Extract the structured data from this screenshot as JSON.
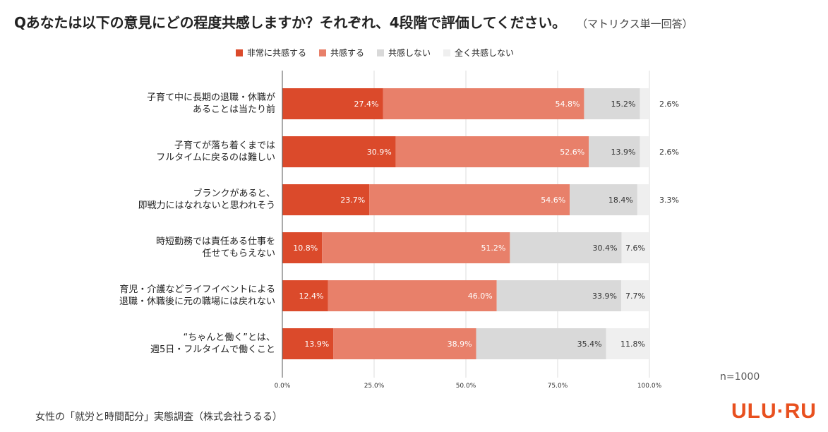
{
  "header": {
    "title": "Qあなたは以下の意見にどの程度共感しますか？それぞれ、4段階で評価してください。",
    "note": "（マトリクス単一回答）"
  },
  "footer": {
    "source": "女性の「就労と時間配分」実態調査（株式会社うるる）",
    "sample_size": "n=1000",
    "logo": "ULU·RU"
  },
  "colors": {
    "strong_agree": "#db4a2b",
    "agree": "#e8806a",
    "disagree": "#d9d9d9",
    "strong_disagree": "#efefef"
  },
  "chart_data": {
    "type": "bar",
    "orientation": "horizontal",
    "stacked": true,
    "categories": [
      [
        "子育て中に長期の退職・休職が",
        "あることは当たり前"
      ],
      [
        "子育てが落ち着くまでは",
        "フルタイムに戻るのは難しい"
      ],
      [
        "ブランクがあると、",
        "即戦力にはなれないと思われそう"
      ],
      [
        "時短勤務では責任ある仕事を",
        "任せてもらえない"
      ],
      [
        "育児・介護などライフイベントによる",
        "退職・休職後に元の職場には戻れない"
      ],
      [
        "“ちゃんと働く”とは、",
        "週5日・フルタイムで働くこと"
      ]
    ],
    "series": [
      {
        "name": "非常に共感する",
        "values": [
          27.4,
          30.9,
          23.7,
          10.8,
          12.4,
          13.9
        ]
      },
      {
        "name": "共感する",
        "values": [
          54.8,
          52.6,
          54.6,
          51.2,
          46.0,
          38.9
        ]
      },
      {
        "name": "共感しない",
        "values": [
          15.2,
          13.9,
          18.4,
          30.4,
          33.9,
          35.4
        ]
      },
      {
        "name": "全く共感しない",
        "values": [
          2.6,
          2.6,
          3.3,
          7.6,
          7.7,
          11.8
        ]
      }
    ],
    "xlim": [
      0,
      100
    ],
    "x_ticks": [
      "0.0%",
      "25.0%",
      "50.0%",
      "75.0%",
      "100.0%"
    ],
    "grid": true,
    "legend_position": "top"
  }
}
